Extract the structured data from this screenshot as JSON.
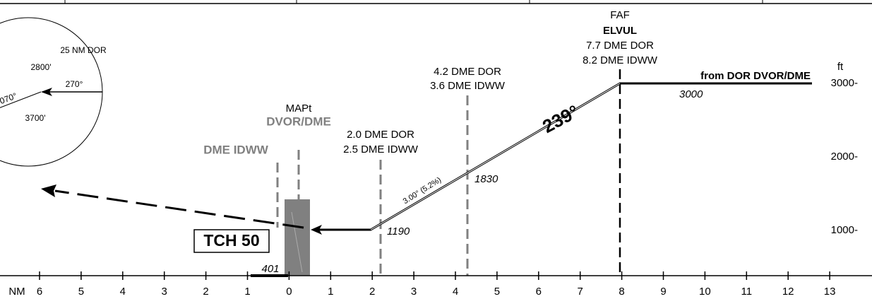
{
  "compass": {
    "radius_label": "25 NM DOR",
    "upper_alt": "2800'",
    "inbound": "270°",
    "outbound": "070°",
    "lower_alt": "3700'"
  },
  "fixes": {
    "faf": {
      "label": "FAF",
      "name": "ELVUL",
      "dme1": "7.7 DME DOR",
      "dme2": "8.2 DME IDWW"
    },
    "sdf1": {
      "dme1": "4.2 DME DOR",
      "dme2": "3.6 DME IDWW",
      "alt": "1830"
    },
    "sdf2": {
      "dme1": "2.0 DME DOR",
      "dme2": "2.5 DME IDWW",
      "alt": "1190"
    },
    "mapt": {
      "label": "MAPt",
      "name": "DVOR/DME"
    },
    "dme": {
      "name": "DME IDWW"
    }
  },
  "from_label": "from DOR DVOR/DME",
  "initial_alt": "3000",
  "course": "239°",
  "glide": "3.00° (5.2%)",
  "tch": "TCH 50",
  "threshold_elev": "401",
  "altitude_scale": {
    "unit": "ft",
    "labels": [
      "3000-",
      "2000-",
      "1000-"
    ]
  },
  "distance_scale": {
    "unit": "NM",
    "labels": [
      "6",
      "5",
      "4",
      "3",
      "2",
      "1",
      "0",
      "1",
      "2",
      "3",
      "4",
      "5",
      "6",
      "7",
      "8",
      "9",
      "10",
      "11",
      "12",
      "13"
    ]
  }
}
